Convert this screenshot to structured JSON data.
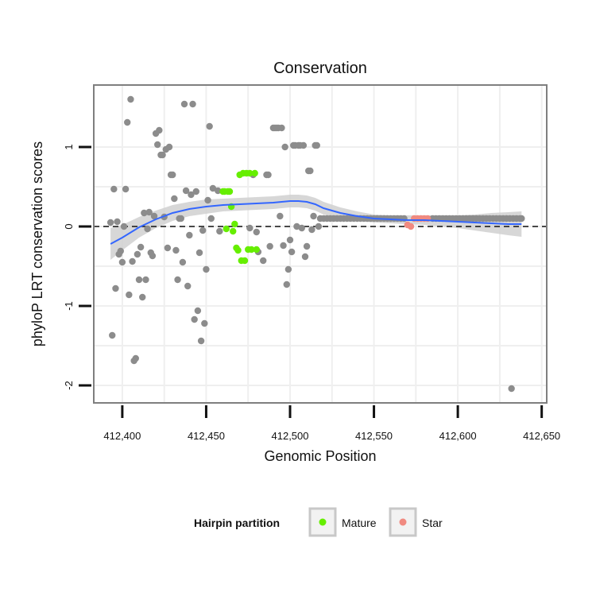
{
  "chart_data": {
    "type": "scatter",
    "title": "Conservation",
    "xlabel": "Genomic Position",
    "ylabel": "phyloP LRT conservation scores",
    "xlim": [
      412383,
      412653
    ],
    "ylim": [
      -2.22,
      1.78
    ],
    "x_ticks": [
      412400,
      412450,
      412500,
      412550,
      412600,
      412650
    ],
    "x_tick_labels": [
      "412,400",
      "412,450",
      "412,500",
      "412,550",
      "412,600",
      "412,650"
    ],
    "y_ticks": [
      -2,
      -1,
      0,
      1
    ],
    "y_tick_labels": [
      "-2",
      "-1",
      "0",
      "1"
    ],
    "grid": true,
    "reference_line": {
      "y": 0,
      "style": "dashed"
    },
    "legend": {
      "title": "Hairpin partition",
      "position": "bottom",
      "entries": [
        {
          "label": "Mature",
          "color": "#66ee00"
        },
        {
          "label": "Star",
          "color": "#f08a80"
        }
      ]
    },
    "colors": {
      "other": "#8c8c8c",
      "mature": "#66ee00",
      "star": "#f08a80",
      "smooth": "#3366ff",
      "ribbon": "#d0d0d0"
    },
    "points_other": [
      [
        412393,
        0.05
      ],
      [
        412394,
        -1.37
      ],
      [
        412395,
        0.47
      ],
      [
        412396,
        -0.78
      ],
      [
        412397,
        0.06
      ],
      [
        412398,
        -0.35
      ],
      [
        412399,
        -0.31
      ],
      [
        412400,
        -0.45
      ],
      [
        412401,
        0.0
      ],
      [
        412402,
        0.47
      ],
      [
        412403,
        1.31
      ],
      [
        412404,
        -0.86
      ],
      [
        412405,
        1.6
      ],
      [
        412406,
        -0.44
      ],
      [
        412407,
        -1.69
      ],
      [
        412408,
        -1.66
      ],
      [
        412409,
        -0.35
      ],
      [
        412410,
        -0.67
      ],
      [
        412411,
        -0.26
      ],
      [
        412412,
        -0.89
      ],
      [
        412413,
        0.17
      ],
      [
        412414,
        -0.67
      ],
      [
        412415,
        -0.03
      ],
      [
        412416,
        0.18
      ],
      [
        412417,
        -0.33
      ],
      [
        412418,
        -0.37
      ],
      [
        412419,
        0.13
      ],
      [
        412420,
        1.17
      ],
      [
        412421,
        1.03
      ],
      [
        412422,
        1.21
      ],
      [
        412423,
        0.9
      ],
      [
        412424,
        0.9
      ],
      [
        412425,
        0.12
      ],
      [
        412426,
        0.97
      ],
      [
        412427,
        -0.27
      ],
      [
        412428,
        1.0
      ],
      [
        412429,
        0.65
      ],
      [
        412430,
        0.65
      ],
      [
        412431,
        0.35
      ],
      [
        412432,
        -0.3
      ],
      [
        412433,
        -0.67
      ],
      [
        412434,
        0.1
      ],
      [
        412435,
        0.1
      ],
      [
        412436,
        -0.45
      ],
      [
        412437,
        1.54
      ],
      [
        412438,
        0.45
      ],
      [
        412439,
        -0.75
      ],
      [
        412440,
        -0.11
      ],
      [
        412441,
        0.4
      ],
      [
        412442,
        1.54
      ],
      [
        412443,
        -1.17
      ],
      [
        412444,
        0.44
      ],
      [
        412445,
        -1.06
      ],
      [
        412446,
        -0.33
      ],
      [
        412447,
        -1.44
      ],
      [
        412448,
        -0.05
      ],
      [
        412449,
        -1.22
      ],
      [
        412450,
        -0.54
      ],
      [
        412451,
        0.33
      ],
      [
        412452,
        1.26
      ],
      [
        412453,
        0.1
      ],
      [
        412454,
        0.48
      ],
      [
        412457,
        0.45
      ],
      [
        412458,
        -0.06
      ],
      [
        412476,
        -0.02
      ],
      [
        412478,
        0.65
      ],
      [
        412480,
        -0.07
      ],
      [
        412481,
        -0.32
      ],
      [
        412484,
        -0.43
      ],
      [
        412486,
        0.65
      ],
      [
        412487,
        0.65
      ],
      [
        412488,
        -0.25
      ],
      [
        412490,
        1.24
      ],
      [
        412491,
        1.24
      ],
      [
        412492,
        1.24
      ],
      [
        412493,
        1.24
      ],
      [
        412494,
        0.13
      ],
      [
        412495,
        1.24
      ],
      [
        412496,
        -0.24
      ],
      [
        412497,
        1.0
      ],
      [
        412498,
        -0.73
      ],
      [
        412499,
        -0.54
      ],
      [
        412500,
        -0.17
      ],
      [
        412501,
        -0.32
      ],
      [
        412502,
        1.02
      ],
      [
        412503,
        1.02
      ],
      [
        412504,
        0.0
      ],
      [
        412505,
        1.02
      ],
      [
        412506,
        1.02
      ],
      [
        412507,
        -0.02
      ],
      [
        412508,
        1.02
      ],
      [
        412509,
        -0.38
      ],
      [
        412510,
        -0.25
      ],
      [
        412511,
        0.7
      ],
      [
        412512,
        0.7
      ],
      [
        412513,
        -0.04
      ],
      [
        412514,
        0.13
      ],
      [
        412515,
        1.02
      ],
      [
        412516,
        1.02
      ],
      [
        412517,
        0.0
      ],
      [
        412518,
        0.1
      ],
      [
        412520,
        0.1
      ],
      [
        412522,
        0.1
      ],
      [
        412524,
        0.1
      ],
      [
        412526,
        0.1
      ],
      [
        412528,
        0.1
      ],
      [
        412530,
        0.1
      ],
      [
        412532,
        0.1
      ],
      [
        412534,
        0.1
      ],
      [
        412536,
        0.1
      ],
      [
        412538,
        0.1
      ],
      [
        412540,
        0.1
      ],
      [
        412542,
        0.1
      ],
      [
        412544,
        0.1
      ],
      [
        412546,
        0.1
      ],
      [
        412548,
        0.1
      ],
      [
        412550,
        0.1
      ],
      [
        412552,
        0.1
      ],
      [
        412554,
        0.1
      ],
      [
        412556,
        0.1
      ],
      [
        412558,
        0.1
      ],
      [
        412560,
        0.1
      ],
      [
        412562,
        0.1
      ],
      [
        412564,
        0.1
      ],
      [
        412566,
        0.1
      ],
      [
        412568,
        0.1
      ],
      [
        412585,
        0.1
      ],
      [
        412587,
        0.1
      ],
      [
        412589,
        0.1
      ],
      [
        412591,
        0.1
      ],
      [
        412593,
        0.1
      ],
      [
        412595,
        0.1
      ],
      [
        412597,
        0.1
      ],
      [
        412599,
        0.1
      ],
      [
        412601,
        0.1
      ],
      [
        412603,
        0.1
      ],
      [
        412605,
        0.1
      ],
      [
        412607,
        0.1
      ],
      [
        412609,
        0.1
      ],
      [
        412611,
        0.1
      ],
      [
        412613,
        0.1
      ],
      [
        412615,
        0.1
      ],
      [
        412617,
        0.1
      ],
      [
        412619,
        0.1
      ],
      [
        412621,
        0.1
      ],
      [
        412623,
        0.1
      ],
      [
        412625,
        0.1
      ],
      [
        412627,
        0.1
      ],
      [
        412629,
        0.1
      ],
      [
        412631,
        0.1
      ],
      [
        412633,
        0.1
      ],
      [
        412635,
        0.1
      ],
      [
        412637,
        0.1
      ],
      [
        412638,
        0.1
      ],
      [
        412632,
        -2.04
      ]
    ],
    "points_mature": [
      [
        412460,
        0.44
      ],
      [
        412461,
        0.44
      ],
      [
        412462,
        -0.03
      ],
      [
        412463,
        0.44
      ],
      [
        412464,
        0.44
      ],
      [
        412465,
        0.25
      ],
      [
        412466,
        -0.06
      ],
      [
        412467,
        0.03
      ],
      [
        412468,
        -0.27
      ],
      [
        412469,
        -0.3
      ],
      [
        412470,
        0.65
      ],
      [
        412471,
        -0.43
      ],
      [
        412472,
        0.67
      ],
      [
        412473,
        -0.43
      ],
      [
        412474,
        0.67
      ],
      [
        412475,
        -0.29
      ],
      [
        412476,
        0.67
      ],
      [
        412477,
        -0.29
      ],
      [
        412479,
        0.67
      ],
      [
        412480,
        -0.29
      ]
    ],
    "points_star": [
      [
        412570,
        0.02
      ],
      [
        412572,
        0.0
      ],
      [
        412574,
        0.1
      ],
      [
        412576,
        0.1
      ],
      [
        412578,
        0.1
      ],
      [
        412580,
        0.1
      ],
      [
        412582,
        0.1
      ]
    ],
    "smooth_curve": [
      [
        412393,
        -0.22
      ],
      [
        412400,
        -0.14
      ],
      [
        412410,
        -0.01
      ],
      [
        412420,
        0.09
      ],
      [
        412430,
        0.17
      ],
      [
        412440,
        0.22
      ],
      [
        412450,
        0.25
      ],
      [
        412460,
        0.27
      ],
      [
        412470,
        0.28
      ],
      [
        412480,
        0.29
      ],
      [
        412490,
        0.3
      ],
      [
        412500,
        0.32
      ],
      [
        412505,
        0.32
      ],
      [
        412510,
        0.31
      ],
      [
        412515,
        0.28
      ],
      [
        412520,
        0.23
      ],
      [
        412530,
        0.17
      ],
      [
        412540,
        0.13
      ],
      [
        412550,
        0.1
      ],
      [
        412560,
        0.09
      ],
      [
        412570,
        0.08
      ],
      [
        412580,
        0.08
      ],
      [
        412590,
        0.07
      ],
      [
        412600,
        0.06
      ],
      [
        412610,
        0.05
      ],
      [
        412620,
        0.04
      ],
      [
        412630,
        0.03
      ],
      [
        412638,
        0.03
      ]
    ],
    "smooth_band": [
      [
        412393,
        -0.42,
        -0.02
      ],
      [
        412400,
        -0.3,
        0.02
      ],
      [
        412410,
        -0.14,
        0.12
      ],
      [
        412420,
        -0.02,
        0.2
      ],
      [
        412430,
        0.07,
        0.27
      ],
      [
        412440,
        0.13,
        0.31
      ],
      [
        412450,
        0.16,
        0.34
      ],
      [
        412460,
        0.19,
        0.35
      ],
      [
        412470,
        0.2,
        0.36
      ],
      [
        412480,
        0.21,
        0.37
      ],
      [
        412490,
        0.22,
        0.38
      ],
      [
        412500,
        0.24,
        0.4
      ],
      [
        412505,
        0.24,
        0.4
      ],
      [
        412510,
        0.23,
        0.39
      ],
      [
        412515,
        0.2,
        0.36
      ],
      [
        412520,
        0.15,
        0.31
      ],
      [
        412530,
        0.1,
        0.24
      ],
      [
        412540,
        0.07,
        0.19
      ],
      [
        412550,
        0.05,
        0.15
      ],
      [
        412560,
        0.04,
        0.14
      ],
      [
        412570,
        0.03,
        0.14
      ],
      [
        412580,
        0.02,
        0.14
      ],
      [
        412590,
        0.0,
        0.14
      ],
      [
        412600,
        -0.02,
        0.14
      ],
      [
        412610,
        -0.05,
        0.15
      ],
      [
        412620,
        -0.08,
        0.17
      ],
      [
        412630,
        -0.11,
        0.18
      ],
      [
        412638,
        -0.13,
        0.19
      ]
    ]
  }
}
